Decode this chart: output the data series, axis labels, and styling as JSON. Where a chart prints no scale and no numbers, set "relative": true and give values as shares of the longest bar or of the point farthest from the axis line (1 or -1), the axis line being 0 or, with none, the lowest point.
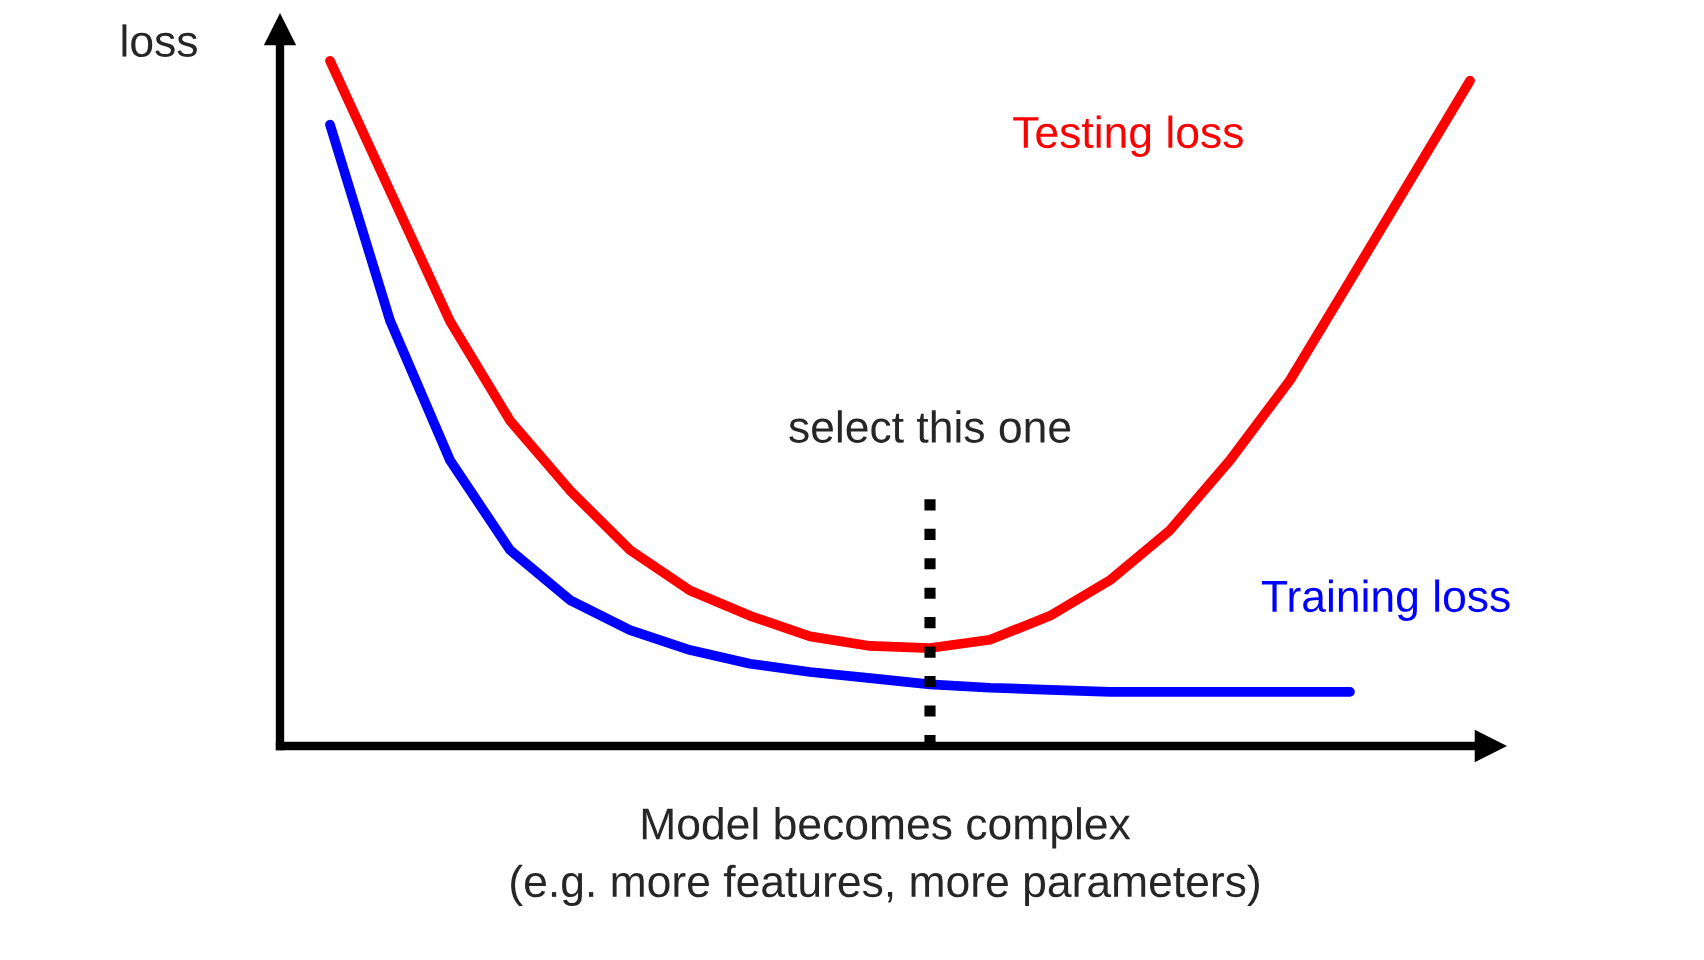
{
  "chart_data": {
    "type": "line",
    "relative": true,
    "ylabel": "loss",
    "xlabel": "Model becomes complex\n(e.g. more features, more parameters)",
    "categories": [
      null,
      null,
      null,
      null,
      null,
      null,
      null,
      null,
      null,
      null,
      null,
      null,
      null,
      null,
      null,
      null,
      null,
      null,
      null,
      null
    ],
    "series": [
      {
        "name": "Testing loss",
        "color": "#ff0000",
        "values": [
          1.0,
          0.81,
          0.62,
          0.475,
          0.373,
          0.286,
          0.227,
          0.19,
          0.16,
          0.146,
          0.143,
          0.155,
          0.19,
          0.242,
          0.315,
          0.417,
          0.534,
          0.679,
          0.825,
          0.971
        ]
      },
      {
        "name": "Training loss",
        "color": "#0000ff",
        "values": [
          0.907,
          0.621,
          0.417,
          0.286,
          0.213,
          0.169,
          0.14,
          0.12,
          0.108,
          0.099,
          0.09,
          0.085,
          0.082,
          0.079,
          0.079,
          0.079,
          0.079,
          0.079,
          null,
          null
        ]
      }
    ],
    "annotations": [
      "select this one"
    ],
    "legend": false,
    "grid": false,
    "marker": "none",
    "line_style": "solid",
    "tick_labels": false
  }
}
